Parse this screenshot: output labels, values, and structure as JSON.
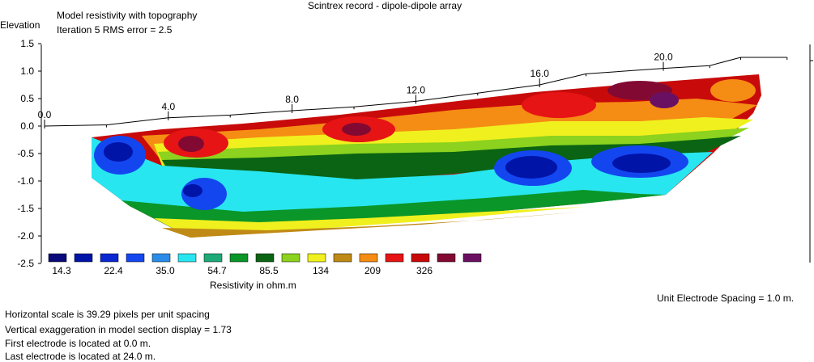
{
  "header": {
    "title": "Scintrex record - dipole-dipole array",
    "model_label": "Model resistivity with topography",
    "iteration_label": "Iteration 5 RMS error = 2.5"
  },
  "chart_data": {
    "type": "heatmap",
    "title": "Scintrex record - dipole-dipole array",
    "ylabel": "Elevation",
    "ylim": [
      -2.5,
      1.5
    ],
    "y_ticks": [
      "1.5",
      "1.0",
      "0.5",
      "0.0",
      "-0.5",
      "-1.0",
      "-1.5",
      "-2.0",
      "-2.5"
    ],
    "x_ticks": [
      "0.0",
      "4.0",
      "8.0",
      "12.0",
      "16.0",
      "20.0"
    ],
    "x_tick_values": [
      0,
      4,
      8,
      12,
      16,
      20
    ],
    "topography": [
      [
        0,
        0.0
      ],
      [
        2,
        0.02
      ],
      [
        4,
        0.15
      ],
      [
        6,
        0.2
      ],
      [
        8,
        0.28
      ],
      [
        10,
        0.35
      ],
      [
        12,
        0.45
      ],
      [
        14,
        0.6
      ],
      [
        16,
        0.75
      ],
      [
        17.5,
        0.95
      ],
      [
        20,
        1.05
      ],
      [
        21.5,
        1.1
      ],
      [
        22.5,
        1.25
      ],
      [
        24,
        1.25
      ]
    ],
    "legend": {
      "label": "Resistivity in ohm.m",
      "colors": [
        "#0a0a7a",
        "#0014a8",
        "#0a28d2",
        "#1446f0",
        "#2a8ce8",
        "#28e6f0",
        "#1eaa78",
        "#0a9628",
        "#0a6414",
        "#8cd21e",
        "#f0f01e",
        "#bf8a16",
        "#f58c14",
        "#e61414",
        "#c80a0a",
        "#820a32",
        "#6a1062"
      ],
      "tick_labels": [
        "14.3",
        "22.4",
        "35.0",
        "54.7",
        "85.5",
        "134",
        "209",
        "326"
      ]
    }
  },
  "footer": {
    "electrode_spacing": "Unit Electrode Spacing = 1.0 m.",
    "horizontal_scale": "Horizontal scale is 39.29 pixels per unit spacing",
    "vertical_exaggeration": "Vertical exaggeration in model section display = 1.73",
    "first_electrode": "First electrode is located at 0.0  m.",
    "last_electrode": "Last electrode is located at 24.0 m."
  }
}
